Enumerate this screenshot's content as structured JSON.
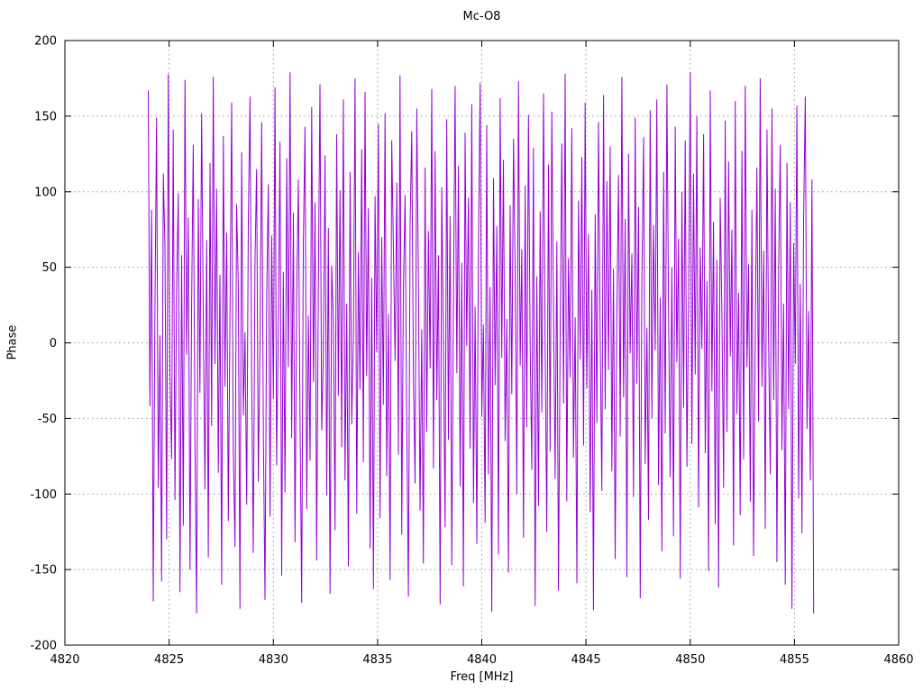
{
  "window": {
    "background": "#ffffff"
  },
  "chart_data": {
    "type": "line",
    "title": "Mc-O8",
    "xlabel": "Freq [MHz]",
    "ylabel": "Phase",
    "xlim": [
      4820,
      4860
    ],
    "ylim": [
      -200,
      200
    ],
    "xticks": [
      4820,
      4825,
      4830,
      4835,
      4840,
      4845,
      4850,
      4855,
      4860
    ],
    "yticks": [
      -200,
      -150,
      -100,
      -50,
      0,
      50,
      100,
      150,
      200
    ],
    "grid": true,
    "grid_style": "dotted-gray",
    "legend": "none",
    "line_color": "#9400d3",
    "grid_color": "#9a9a9a",
    "border_color": "#000000",
    "description": "Wrapped phase noise vs frequency; values jump randomly within about -180..180 degrees between 4824 and 4856 MHz",
    "series": [
      {
        "name": "phase",
        "x_start": 4824.0,
        "x_step": 0.08,
        "phases": [
          167,
          -42,
          88,
          -171,
          23,
          149,
          -96,
          5,
          -158,
          112,
          64,
          -130,
          178,
          -19,
          -77,
          141,
          -104,
          36,
          99,
          -165,
          58,
          -121,
          174,
          -8,
          83,
          -150,
          27,
          131,
          -66,
          -179,
          95,
          -33,
          152,
          11,
          -97,
          68,
          -142,
          119,
          -55,
          176,
          -14,
          102,
          -86,
          45,
          -160,
          137,
          -29,
          73,
          -118,
          21,
          159,
          -71,
          -135,
          92,
          38,
          -176,
          126,
          -48,
          7,
          -107,
          81,
          163,
          -25,
          -139,
          54,
          115,
          -92,
          -3,
          146,
          -61,
          -170,
          32,
          105,
          -115,
          71,
          -37,
          169,
          -81,
          13,
          133,
          -154,
          47,
          -99,
          122,
          -16,
          179,
          -63,
          86,
          -132,
          29,
          108,
          -45,
          -172,
          65,
          143,
          -110,
          18,
          -78,
          156,
          -26,
          93,
          -144,
          39,
          171,
          -58,
          -9,
          124,
          -101,
          76,
          -166,
          51,
          14,
          -124,
          138,
          -35,
          101,
          -69,
          161,
          -91,
          26,
          -148,
          113,
          -54,
          6,
          175,
          -113,
          60,
          -31,
          128,
          -79,
          166,
          -22,
          89,
          -136,
          43,
          -163,
          97,
          -6,
          145,
          -116,
          70,
          -41,
          152,
          -88,
          19,
          -157,
          134,
          61,
          -12,
          106,
          -74,
          177,
          -127,
          34,
          98,
          -51,
          -168,
          79,
          140,
          -24,
          -93,
          155,
          42,
          -111,
          9,
          -146,
          116,
          -59,
          74,
          -17,
          168,
          -83,
          127,
          -38,
          58,
          -173,
          103,
          4,
          -122,
          148,
          -64,
          84,
          -147,
          31,
          170,
          -20,
          117,
          -95,
          53,
          -161,
          139,
          -2,
          96,
          -70,
          158,
          -106,
          24,
          -133,
          66,
          172,
          -49,
          12,
          -119,
          144,
          -87,
          37,
          -178,
          109,
          -28,
          77,
          -140,
          162,
          -10,
          121,
          -65,
          16,
          -152,
          91,
          -34,
          135,
          48,
          -100,
          173,
          -15,
          62,
          -129,
          104,
          -56,
          151,
          3,
          -84,
          129,
          -174,
          44,
          -108,
          87,
          -46,
          165,
          -1,
          -125,
          118,
          -72,
          153,
          28,
          -90,
          67,
          -164,
          8,
          132,
          -40,
          178,
          -105,
          56,
          -23,
          142,
          -76,
          17,
          -159,
          94,
          -11,
          123,
          -68,
          159,
          -30,
          72,
          -112,
          35,
          -177,
          85,
          -53,
          146,
          2,
          -98,
          164,
          -44,
          107,
          -18,
          130,
          -85,
          49,
          -143,
          15,
          111,
          -62,
          176,
          -36,
          82,
          -155,
          125,
          -7,
          59,
          -102,
          149,
          -27,
          90,
          -169,
          40,
          136,
          -80,
          10,
          -117,
          154,
          -50,
          78,
          -5,
          161,
          -94,
          30,
          -138,
          113,
          -60,
          171,
          22,
          -89,
          50,
          -128,
          143,
          -13,
          69,
          -156,
          100,
          -43,
          134,
          -82,
          25,
          179,
          -67,
          112,
          -21,
          150,
          -109,
          63,
          -4,
          138,
          -73,
          41,
          -151,
          167,
          -32,
          80,
          -120,
          55,
          -162,
          96,
          20,
          -96,
          147,
          -59,
          120,
          -9,
          75,
          -134,
          160,
          -47,
          33,
          -114,
          127,
          -77,
          170,
          -16,
          52,
          -105,
          88,
          -141,
          7,
          116,
          -52,
          175,
          -29,
          61,
          -123,
          141,
          0,
          -87,
          155,
          -38,
          102,
          -145,
          46,
          131,
          -71,
          26,
          -160,
          119,
          -44,
          93,
          -176,
          66,
          -14,
          157,
          -103,
          39,
          -126,
          80,
          163,
          -57,
          21,
          -91,
          108,
          -179
        ]
      }
    ]
  }
}
